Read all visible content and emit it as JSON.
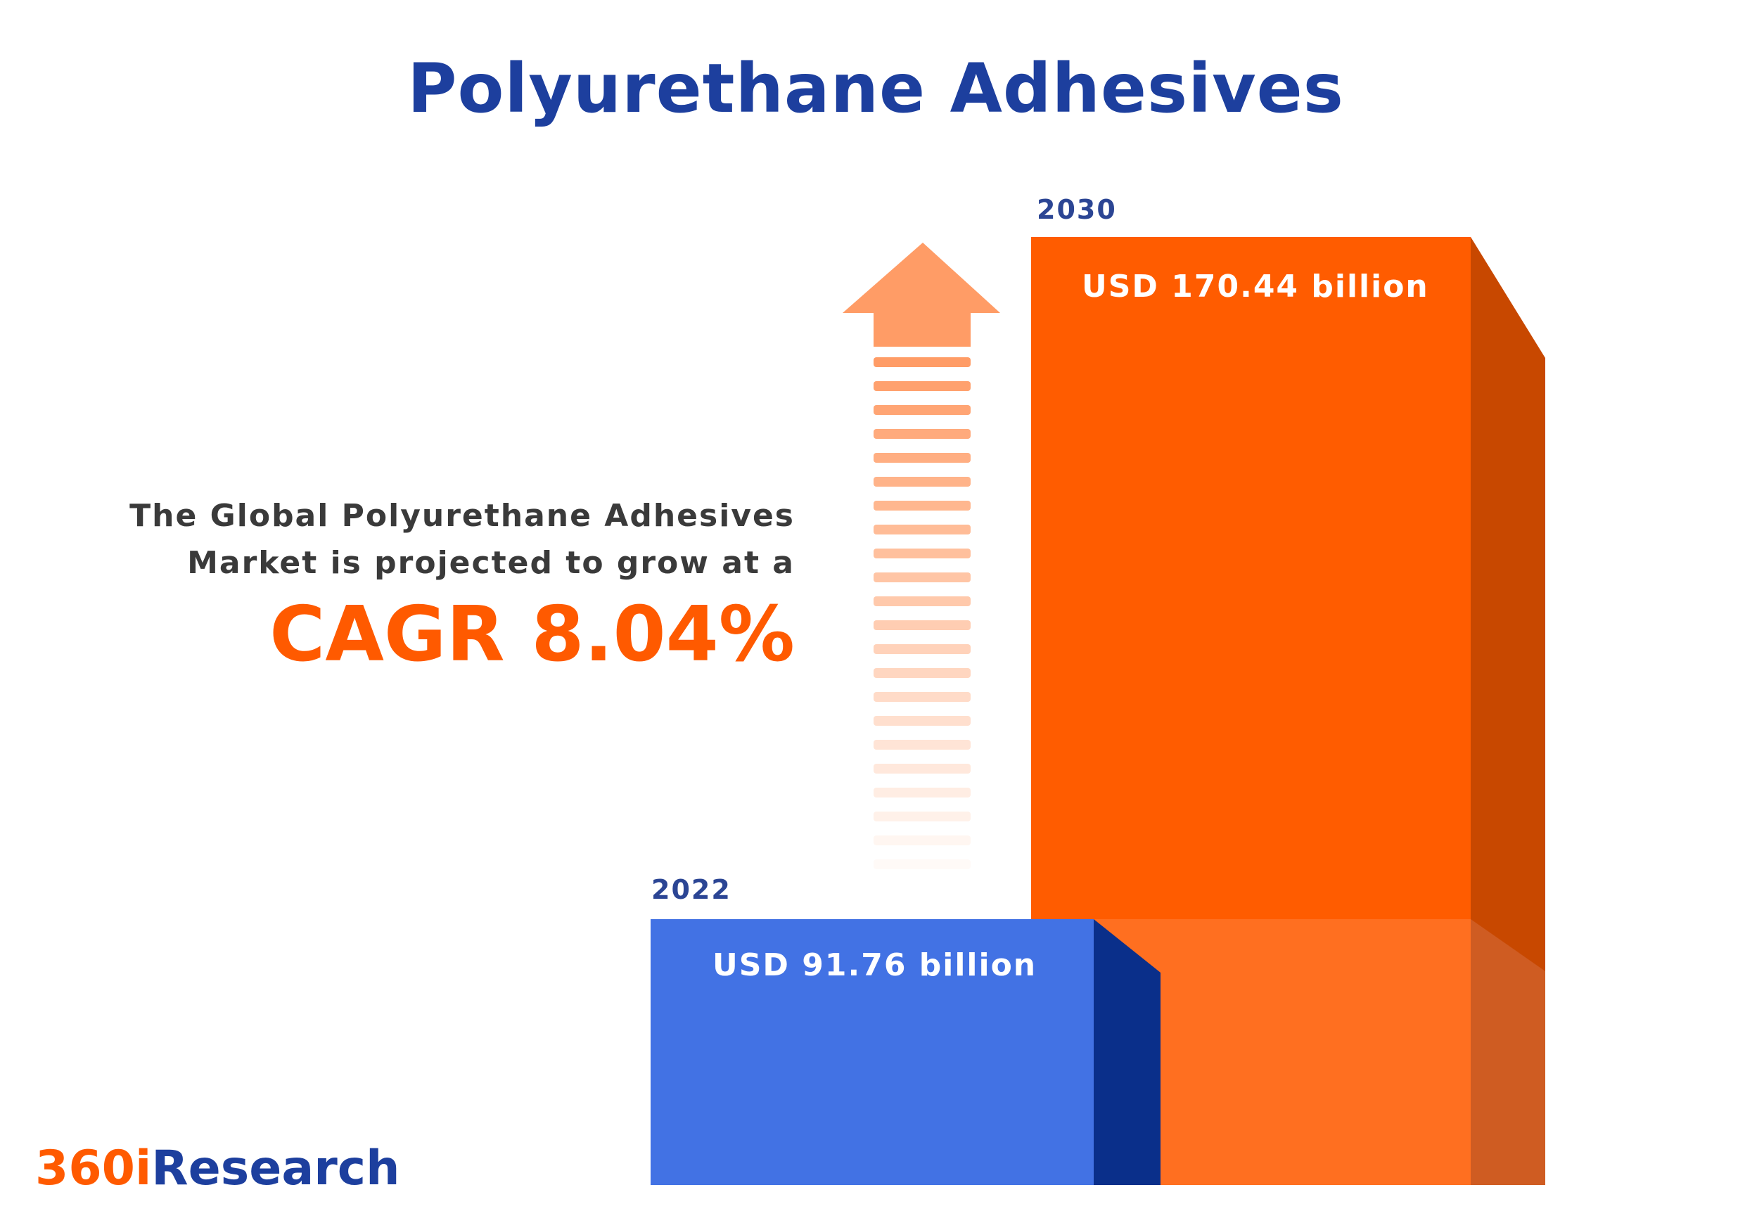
{
  "title": "Polyurethane Adhesives",
  "description": {
    "line1": "The Global Polyurethane Adhesives",
    "line2": "Market is projected to grow at a",
    "cagr": "CAGR 8.04%"
  },
  "logo": {
    "part1": "360i",
    "part2": "Research"
  },
  "colors": {
    "title": "#1d3f9e",
    "accent_orange": "#ff5a00",
    "bar_2022": "#4272e4",
    "bar_2030": "#ff5a00"
  },
  "chart_data": {
    "type": "bar",
    "title": "Polyurethane Adhesives",
    "categories": [
      "2022",
      "2030"
    ],
    "values": [
      91.76,
      170.44
    ],
    "unit": "USD billion",
    "labels": [
      "USD 91.76 billion",
      "USD 170.44 billion"
    ],
    "annotation": "CAGR 8.04%"
  }
}
